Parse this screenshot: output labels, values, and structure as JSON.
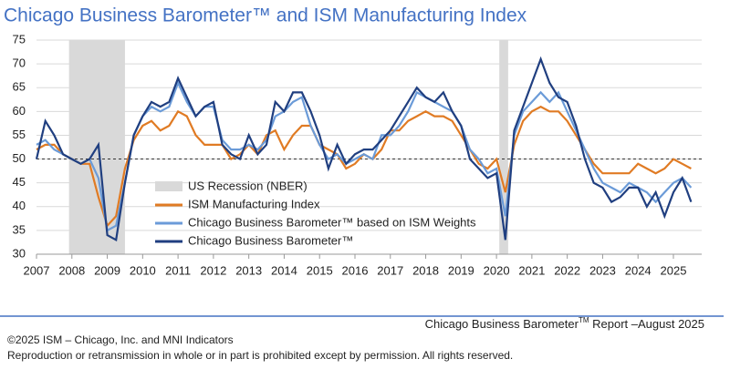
{
  "chart_data": {
    "type": "line",
    "title": "Chicago Business Barometer™ and ISM Manufacturing Index",
    "x": [
      2007,
      2007.25,
      2007.5,
      2007.75,
      2008,
      2008.25,
      2008.5,
      2008.75,
      2009,
      2009.25,
      2009.5,
      2009.75,
      2010,
      2010.25,
      2010.5,
      2010.75,
      2011,
      2011.25,
      2011.5,
      2011.75,
      2012,
      2012.25,
      2012.5,
      2012.75,
      2013,
      2013.25,
      2013.5,
      2013.75,
      2014,
      2014.25,
      2014.5,
      2014.75,
      2015,
      2015.25,
      2015.5,
      2015.75,
      2016,
      2016.25,
      2016.5,
      2016.75,
      2017,
      2017.25,
      2017.5,
      2017.75,
      2018,
      2018.25,
      2018.5,
      2018.75,
      2019,
      2019.25,
      2019.5,
      2019.75,
      2020,
      2020.25,
      2020.5,
      2020.75,
      2021,
      2021.25,
      2021.5,
      2021.75,
      2022,
      2022.25,
      2022.5,
      2022.75,
      2023,
      2023.25,
      2023.5,
      2023.75,
      2024,
      2024.25,
      2024.5,
      2024.75,
      2025,
      2025.25,
      2025.5
    ],
    "series": [
      {
        "name": "ISM Manufacturing Index",
        "color": "#e07b24",
        "values": [
          52,
          53,
          53,
          51,
          50,
          49,
          49,
          42,
          36,
          38,
          48,
          54,
          57,
          58,
          56,
          57,
          60,
          59,
          55,
          53,
          53,
          53,
          50,
          51,
          53,
          51,
          55,
          56,
          52,
          55,
          57,
          57,
          53,
          52,
          51,
          48,
          49,
          51,
          50,
          52,
          56,
          56,
          58,
          59,
          60,
          59,
          59,
          58,
          55,
          52,
          49,
          48,
          50,
          43,
          53,
          58,
          60,
          61,
          60,
          60,
          58,
          55,
          52,
          49,
          47,
          47,
          47,
          47,
          49,
          48,
          47,
          48,
          50,
          49,
          48
        ]
      },
      {
        "name": "Chicago Business Barometer™ based on ISM Weights",
        "color": "#6b9bd8",
        "values": [
          53,
          54,
          52,
          51,
          50,
          49,
          50,
          46,
          35,
          36,
          45,
          55,
          59,
          61,
          60,
          61,
          66,
          62,
          59,
          61,
          61,
          54,
          52,
          52,
          53,
          52,
          54,
          59,
          60,
          62,
          63,
          57,
          53,
          50,
          51,
          49,
          50,
          51,
          50,
          55,
          55,
          57,
          60,
          64,
          63,
          62,
          61,
          60,
          57,
          52,
          50,
          47,
          48,
          38,
          55,
          60,
          62,
          64,
          62,
          64,
          60,
          56,
          52,
          48,
          45,
          44,
          43,
          45,
          44,
          43,
          41,
          43,
          45,
          46,
          44
        ]
      },
      {
        "name": "Chicago Business Barometer™",
        "color": "#203f80",
        "values": [
          50,
          58,
          55,
          51,
          50,
          49,
          50,
          53,
          34,
          33,
          45,
          55,
          59,
          62,
          61,
          62,
          67,
          63,
          59,
          61,
          62,
          53,
          51,
          50,
          55,
          51,
          53,
          62,
          60,
          64,
          64,
          60,
          55,
          48,
          53,
          49,
          51,
          52,
          52,
          54,
          56,
          59,
          62,
          65,
          63,
          62,
          64,
          60,
          57,
          50,
          48,
          46,
          47,
          33,
          56,
          61,
          66,
          71,
          66,
          63,
          62,
          57,
          50,
          45,
          44,
          41,
          42,
          44,
          44,
          40,
          43,
          38,
          43,
          46,
          41
        ]
      }
    ],
    "recession_label": "US Recession (NBER)",
    "recession_color": "#d9d9d9",
    "recessions": [
      [
        2007.92,
        2009.5
      ],
      [
        2020.08,
        2020.33
      ]
    ],
    "reference_line": 50,
    "xlim": [
      2007,
      2025.8
    ],
    "xticks": [
      2007,
      2008,
      2009,
      2010,
      2011,
      2012,
      2013,
      2014,
      2015,
      2016,
      2017,
      2018,
      2019,
      2020,
      2021,
      2022,
      2023,
      2024,
      2025
    ],
    "ylim": [
      30,
      75
    ],
    "yticks": [
      30,
      35,
      40,
      45,
      50,
      55,
      60,
      65,
      70,
      75
    ],
    "grid": true
  },
  "footer": {
    "report_prefix": "Chicago Business Barometer",
    "report_sup": "TM",
    "report_suffix": " Report –August 2025",
    "copyright": "©2025 ISM – Chicago, Inc. and MNI Indicators",
    "rights": "Reproduction or retransmission in whole or in part is prohibited except by permission. All rights reserved."
  }
}
